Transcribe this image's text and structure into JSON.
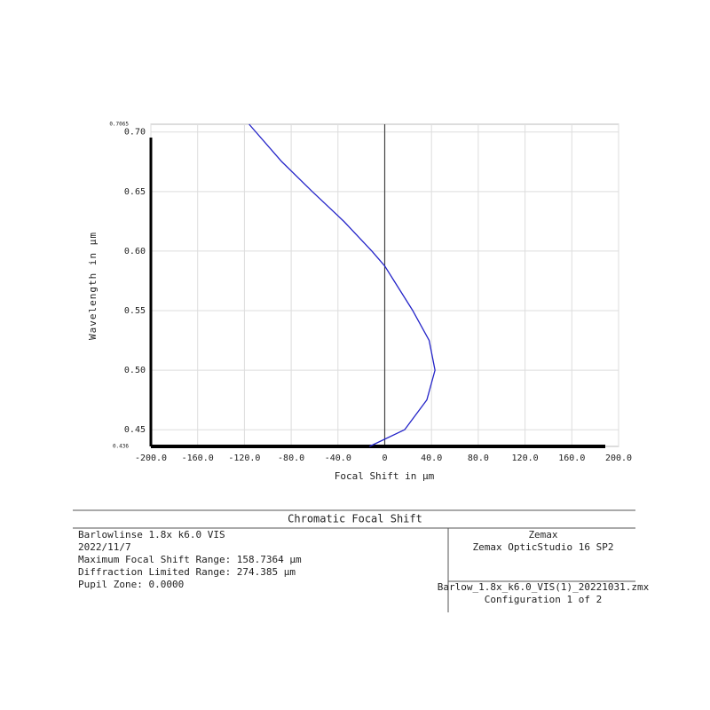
{
  "chart_data": {
    "type": "line",
    "x_label": "Focal Shift in µm",
    "y_label": "Wavelength in µm",
    "xlim": [
      -200,
      200
    ],
    "ylim": [
      0.436,
      0.7065
    ],
    "xticks": [
      {
        "value": -200,
        "label": "-200.0"
      },
      {
        "value": -160,
        "label": "-160.0"
      },
      {
        "value": -120,
        "label": "-120.0"
      },
      {
        "value": -80,
        "label": "-80.0"
      },
      {
        "value": -40,
        "label": "-40.0"
      },
      0,
      {
        "value": 40,
        "label": "40.0"
      },
      {
        "value": 80,
        "label": "80.0"
      },
      {
        "value": 120,
        "label": "120.0"
      },
      {
        "value": 160,
        "label": "160.0"
      },
      {
        "value": 200,
        "label": "200.0"
      }
    ],
    "yticks": [
      0.45,
      {
        "value": 0.5,
        "label": "0.50"
      },
      0.55,
      {
        "value": 0.6,
        "label": "0.60"
      },
      0.65,
      {
        "value": 0.7,
        "label": "0.70"
      }
    ],
    "grid": true,
    "color": "#2323c8",
    "x": [
      -13,
      17,
      36,
      43,
      38,
      24,
      8,
      0,
      -11,
      -35,
      -62,
      -88,
      -116
    ],
    "values": [
      0.436,
      0.45,
      0.475,
      0.5,
      0.525,
      0.55,
      0.575,
      0.5875,
      0.6,
      0.625,
      0.65,
      0.675,
      0.7065
    ]
  },
  "info": {
    "title": "Chromatic Focal Shift",
    "left_lines": [
      "Barlowlinse 1.8x k6.0 VIS",
      "2022/11/7",
      "Maximum Focal Shift Range: 158.7364 µm",
      "Diffraction Limited Range: 274.385 µm",
      "Pupil Zone: 0.0000"
    ],
    "right_top": [
      "Zemax",
      "Zemax OpticStudio 16 SP2"
    ],
    "right_bottom": [
      "Barlow_1.8x_k6.0_VIS(1)_20221031.zmx",
      "Configuration 1 of 2"
    ]
  }
}
